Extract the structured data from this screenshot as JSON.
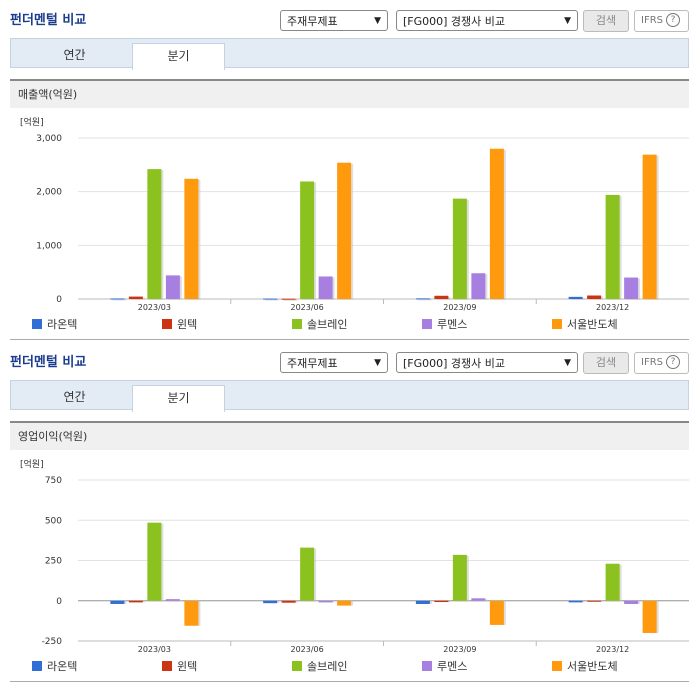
{
  "panels": [
    {
      "title": "펀더멘털 비교",
      "select1": "주재무제표",
      "select2": "[FG000] 경쟁사 비교",
      "search_label": "검색",
      "ifrs_label": "IFRS",
      "help_glyph": "?",
      "tabs": [
        {
          "label": "연간",
          "active": false
        },
        {
          "label": "분기",
          "active": true
        }
      ],
      "section_title": "매출액(억원)"
    },
    {
      "title": "펀더멘털 비교",
      "select1": "주재무제표",
      "select2": "[FG000] 경쟁사 비교",
      "search_label": "검색",
      "ifrs_label": "IFRS",
      "help_glyph": "?",
      "tabs": [
        {
          "label": "연간",
          "active": false
        },
        {
          "label": "분기",
          "active": true
        }
      ],
      "section_title": "영업이익(억원)"
    }
  ],
  "chart_data": [
    {
      "type": "bar",
      "title": "매출액(억원)",
      "unit_label": "[억원]",
      "categories": [
        "2023/03",
        "2023/06",
        "2023/09",
        "2023/12"
      ],
      "ylim": [
        0,
        3000
      ],
      "yticks": [
        0,
        1000,
        2000,
        3000
      ],
      "ytick_labels": [
        "0",
        "1,000",
        "2,000",
        "3,000"
      ],
      "grid": true,
      "legend_position": "bottom",
      "series": [
        {
          "name": "라온텍",
          "color": "#2f6fd6",
          "values": [
            10,
            8,
            12,
            40
          ]
        },
        {
          "name": "윈텍",
          "color": "#cc3311",
          "values": [
            45,
            5,
            60,
            65
          ]
        },
        {
          "name": "솔브레인",
          "color": "#8cc21f",
          "values": [
            2420,
            2190,
            1870,
            1940
          ]
        },
        {
          "name": "루멘스",
          "color": "#a77fe0",
          "values": [
            440,
            420,
            480,
            400
          ]
        },
        {
          "name": "서울반도체",
          "color": "#ff9a0f",
          "values": [
            2240,
            2540,
            2800,
            2690
          ]
        }
      ]
    },
    {
      "type": "bar",
      "title": "영업이익(억원)",
      "unit_label": "[억원]",
      "categories": [
        "2023/03",
        "2023/06",
        "2023/09",
        "2023/12"
      ],
      "ylim": [
        -250,
        750
      ],
      "yticks": [
        -250,
        0,
        250,
        500,
        750
      ],
      "ytick_labels": [
        "-250",
        "0",
        "250",
        "500",
        "750"
      ],
      "grid": true,
      "legend_position": "bottom",
      "series": [
        {
          "name": "라온텍",
          "color": "#2f6fd6",
          "values": [
            -20,
            -15,
            -20,
            -10
          ]
        },
        {
          "name": "윈텍",
          "color": "#cc3311",
          "values": [
            -10,
            -12,
            -8,
            -3
          ]
        },
        {
          "name": "솔브레인",
          "color": "#8cc21f",
          "values": [
            485,
            330,
            285,
            230
          ]
        },
        {
          "name": "루멘스",
          "color": "#a77fe0",
          "values": [
            10,
            -10,
            15,
            -20
          ]
        },
        {
          "name": "서울반도체",
          "color": "#ff9a0f",
          "values": [
            -155,
            -30,
            -150,
            -200
          ]
        }
      ]
    }
  ]
}
